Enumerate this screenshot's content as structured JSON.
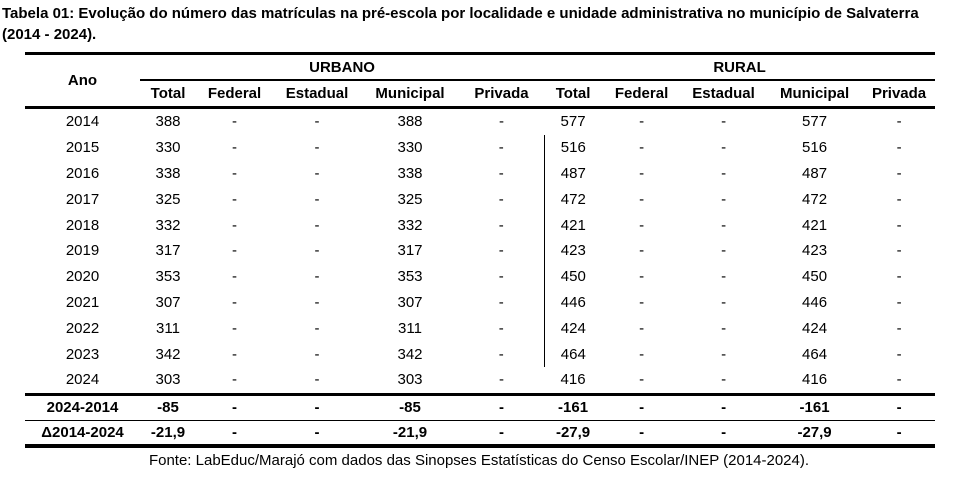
{
  "page": {
    "title": "Tabela 01: Evolução do número das matrículas na pré-escola por localidade e unidade administrativa no município de Salvaterra (2014 - 2024).",
    "source_note": "Fonte: LabEduc/Marajó com dados das Sinopses Estatísticas do Censo Escolar/INEP (2014-2024)."
  },
  "chart_data": {
    "type": "table",
    "title": "Tabela 01: Evolução do número das matrículas na pré-escola por localidade e unidade administrativa no município de Salvaterra (2014 - 2024).",
    "header": {
      "year_col": "Ano",
      "groups": [
        {
          "label": "URBANO",
          "columns": [
            "Total",
            "Federal",
            "Estadual",
            "Municipal",
            "Privada"
          ]
        },
        {
          "label": "RURAL",
          "columns": [
            "Total",
            "Federal",
            "Estadual",
            "Municipal",
            "Privada"
          ]
        }
      ]
    },
    "rows": [
      {
        "ano": "2014",
        "values": [
          "388",
          "-",
          "-",
          "388",
          "-",
          "577",
          "-",
          "-",
          "577",
          "-"
        ]
      },
      {
        "ano": "2015",
        "values": [
          "330",
          "-",
          "-",
          "330",
          "-",
          "516",
          "-",
          "-",
          "516",
          "-"
        ]
      },
      {
        "ano": "2016",
        "values": [
          "338",
          "-",
          "-",
          "338",
          "-",
          "487",
          "-",
          "-",
          "487",
          "-"
        ]
      },
      {
        "ano": "2017",
        "values": [
          "325",
          "-",
          "-",
          "325",
          "-",
          "472",
          "-",
          "-",
          "472",
          "-"
        ]
      },
      {
        "ano": "2018",
        "values": [
          "332",
          "-",
          "-",
          "332",
          "-",
          "421",
          "-",
          "-",
          "421",
          "-"
        ]
      },
      {
        "ano": "2019",
        "values": [
          "317",
          "-",
          "-",
          "317",
          "-",
          "423",
          "-",
          "-",
          "423",
          "-"
        ]
      },
      {
        "ano": "2020",
        "values": [
          "353",
          "-",
          "-",
          "353",
          "-",
          "450",
          "-",
          "-",
          "450",
          "-"
        ]
      },
      {
        "ano": "2021",
        "values": [
          "307",
          "-",
          "-",
          "307",
          "-",
          "446",
          "-",
          "-",
          "446",
          "-"
        ]
      },
      {
        "ano": "2022",
        "values": [
          "311",
          "-",
          "-",
          "311",
          "-",
          "424",
          "-",
          "-",
          "424",
          "-"
        ]
      },
      {
        "ano": "2023",
        "values": [
          "342",
          "-",
          "-",
          "342",
          "-",
          "464",
          "-",
          "-",
          "464",
          "-"
        ]
      },
      {
        "ano": "2024",
        "values": [
          "303",
          "-",
          "-",
          "303",
          "-",
          "416",
          "-",
          "-",
          "416",
          "-"
        ]
      }
    ],
    "summary_rows": [
      {
        "label": "2024-2014",
        "values": [
          "-85",
          "-",
          "-",
          "-85",
          "-",
          "-161",
          "-",
          "-",
          "-161",
          "-"
        ]
      },
      {
        "label": "Δ2014-2024",
        "values": [
          "-21,9",
          "-",
          "-",
          "-21,9",
          "-",
          "-27,9",
          "-",
          "-",
          "-27,9",
          "-"
        ]
      }
    ],
    "divider_rows": {
      "note": "vertical rule before RURAL Total",
      "from_year": "2015",
      "to_year": "2023"
    },
    "source": "Fonte: LabEduc/Marajó com dados das Sinopses Estatísticas do Censo Escolar/INEP (2014-2024)."
  },
  "colors": {
    "background": "#ffffff",
    "text": "#000000",
    "border": "#000000"
  }
}
